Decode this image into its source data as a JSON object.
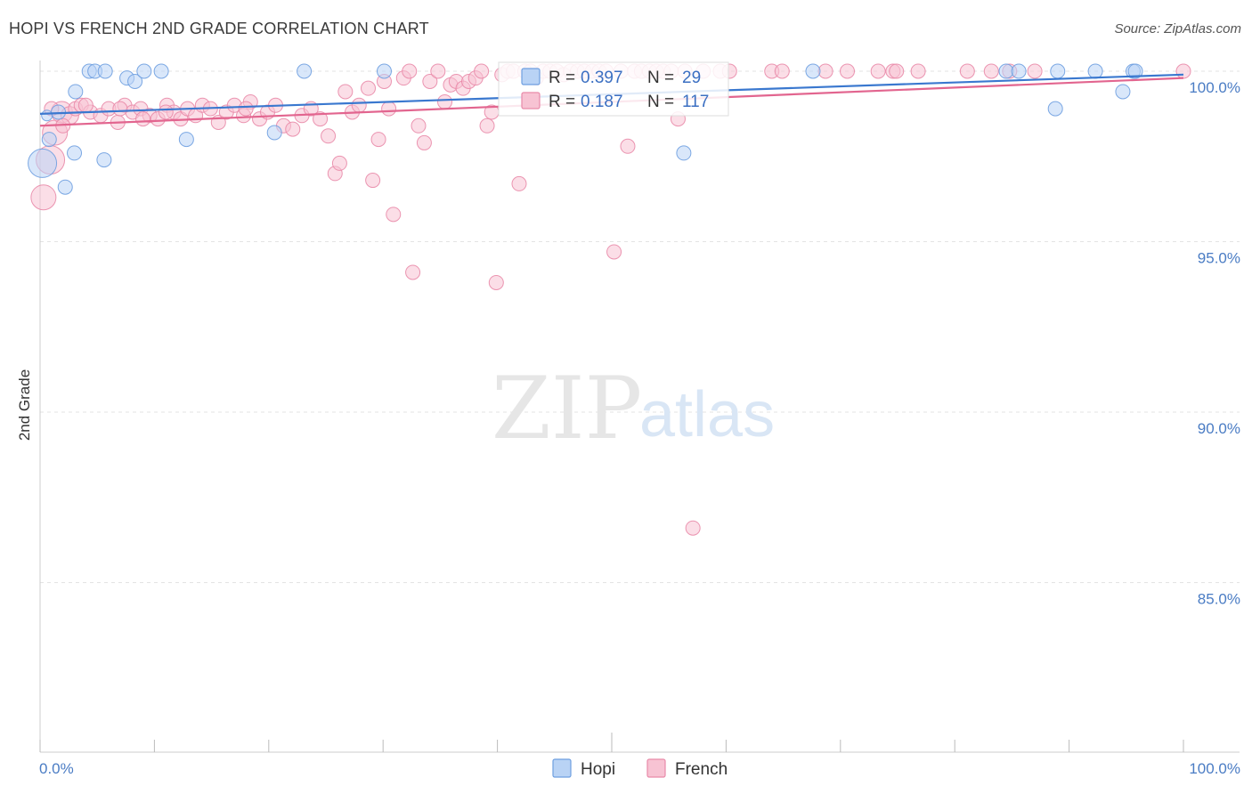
{
  "title": "HOPI VS FRENCH 2ND GRADE CORRELATION CHART",
  "source": "Source: ZipAtlas.com",
  "watermark": {
    "zip": "ZIP",
    "atlas": "atlas"
  },
  "colors": {
    "hopi_fill": "#b9d3f5",
    "hopi_stroke": "#6e9fe0",
    "hopi_line": "#3a78cf",
    "french_fill": "#f7c3d3",
    "french_stroke": "#e98aa9",
    "french_line": "#e2658f",
    "grid": "#e3e3e3",
    "tick_label": "#4a7cc4"
  },
  "legend": {
    "rows": [
      {
        "r_label": "R = ",
        "r_value": "0.397",
        "n_label": "N = ",
        "n_value": "29"
      },
      {
        "r_label": "R = ",
        "r_value": "0.187",
        "n_label": "N = ",
        "n_value": "117"
      }
    ]
  },
  "bottom_legend": [
    "Hopi",
    "French"
  ],
  "chart_data": {
    "type": "scatter",
    "title": "HOPI VS FRENCH 2ND GRADE CORRELATION CHART",
    "xlabel": "",
    "ylabel": "2nd Grade",
    "xlim": [
      0,
      100
    ],
    "ylim": [
      80.5,
      100.7
    ],
    "x_tick_labels": [
      "0.0%",
      "100.0%"
    ],
    "y_ticks": [
      100,
      95,
      90,
      85
    ],
    "y_tick_labels": [
      "100.0%",
      "95.0%",
      "90.0%",
      "85.0%"
    ],
    "grid": true,
    "series": [
      {
        "name": "Hopi",
        "R": 0.397,
        "N": 29,
        "trend": [
          [
            0,
            98.75
          ],
          [
            100,
            99.9
          ]
        ],
        "points": [
          [
            0.2,
            97.3,
            16
          ],
          [
            0.8,
            98.0,
            8
          ],
          [
            1.6,
            98.8,
            8
          ],
          [
            2.2,
            96.6,
            8
          ],
          [
            3.0,
            97.6,
            8
          ],
          [
            3.1,
            99.4,
            8
          ],
          [
            4.3,
            100.0,
            8
          ],
          [
            4.8,
            100.0,
            8
          ],
          [
            5.7,
            100.0,
            8
          ],
          [
            5.6,
            97.4,
            8
          ],
          [
            7.6,
            99.8,
            8
          ],
          [
            8.3,
            99.7,
            8
          ],
          [
            9.1,
            100.0,
            8
          ],
          [
            10.6,
            100.0,
            8
          ],
          [
            12.8,
            98.0,
            8
          ],
          [
            20.5,
            98.2,
            8
          ],
          [
            23.1,
            100.0,
            8
          ],
          [
            30.1,
            100.0,
            8
          ],
          [
            56.3,
            97.6,
            8
          ],
          [
            67.6,
            100.0,
            8
          ],
          [
            84.5,
            100.0,
            8
          ],
          [
            85.6,
            100.0,
            8
          ],
          [
            88.8,
            98.9,
            8
          ],
          [
            89.0,
            100.0,
            8
          ],
          [
            92.3,
            100.0,
            8
          ],
          [
            94.7,
            99.4,
            8
          ],
          [
            95.6,
            100.0,
            8
          ],
          [
            95.8,
            100.0,
            8
          ],
          [
            0.6,
            98.7,
            6
          ]
        ]
      },
      {
        "name": "French",
        "R": 0.187,
        "N": 117,
        "trend": [
          [
            0,
            98.4
          ],
          [
            100,
            99.8
          ]
        ],
        "points": [
          [
            0.3,
            96.3,
            14
          ],
          [
            0.9,
            97.4,
            16
          ],
          [
            1.3,
            98.2,
            14
          ],
          [
            1.9,
            98.8,
            12
          ],
          [
            2.6,
            98.7,
            10
          ],
          [
            3.1,
            98.9,
            8
          ],
          [
            3.6,
            99.0,
            8
          ],
          [
            4.4,
            98.8,
            8
          ],
          [
            5.3,
            98.7,
            8
          ],
          [
            6.0,
            98.9,
            8
          ],
          [
            6.8,
            98.5,
            8
          ],
          [
            7.4,
            99.0,
            8
          ],
          [
            8.1,
            98.8,
            8
          ],
          [
            8.8,
            98.9,
            8
          ],
          [
            9.6,
            98.7,
            8
          ],
          [
            10.3,
            98.6,
            8
          ],
          [
            11.1,
            99.0,
            8
          ],
          [
            11.7,
            98.8,
            8
          ],
          [
            12.3,
            98.6,
            8
          ],
          [
            12.9,
            98.9,
            8
          ],
          [
            13.6,
            98.7,
            8
          ],
          [
            14.2,
            99.0,
            8
          ],
          [
            14.9,
            98.9,
            8
          ],
          [
            15.6,
            98.5,
            8
          ],
          [
            16.3,
            98.8,
            8
          ],
          [
            17.0,
            99.0,
            8
          ],
          [
            17.8,
            98.7,
            8
          ],
          [
            18.4,
            99.1,
            8
          ],
          [
            19.2,
            98.6,
            8
          ],
          [
            19.9,
            98.8,
            8
          ],
          [
            20.6,
            99.0,
            8
          ],
          [
            21.3,
            98.4,
            8
          ],
          [
            22.1,
            98.3,
            8
          ],
          [
            22.9,
            98.7,
            8
          ],
          [
            23.7,
            98.9,
            8
          ],
          [
            24.5,
            98.6,
            8
          ],
          [
            25.2,
            98.1,
            8
          ],
          [
            25.8,
            97.0,
            8
          ],
          [
            26.2,
            97.3,
            8
          ],
          [
            26.7,
            99.4,
            8
          ],
          [
            27.3,
            98.8,
            8
          ],
          [
            27.9,
            99.0,
            8
          ],
          [
            28.7,
            99.5,
            8
          ],
          [
            29.1,
            96.8,
            8
          ],
          [
            29.6,
            98.0,
            8
          ],
          [
            30.1,
            99.7,
            8
          ],
          [
            30.5,
            98.9,
            8
          ],
          [
            30.9,
            95.8,
            8
          ],
          [
            31.8,
            99.8,
            8
          ],
          [
            32.3,
            100.0,
            8
          ],
          [
            32.6,
            94.1,
            8
          ],
          [
            33.1,
            98.4,
            8
          ],
          [
            33.6,
            97.9,
            8
          ],
          [
            34.1,
            99.7,
            8
          ],
          [
            34.8,
            100.0,
            8
          ],
          [
            35.4,
            99.1,
            8
          ],
          [
            35.9,
            99.6,
            8
          ],
          [
            36.4,
            99.7,
            8
          ],
          [
            37.0,
            99.5,
            8
          ],
          [
            37.5,
            99.7,
            8
          ],
          [
            38.1,
            99.8,
            8
          ],
          [
            38.6,
            100.0,
            8
          ],
          [
            39.1,
            98.4,
            8
          ],
          [
            39.5,
            98.8,
            8
          ],
          [
            39.9,
            93.8,
            8
          ],
          [
            40.4,
            99.9,
            8
          ],
          [
            40.9,
            100.0,
            8
          ],
          [
            41.4,
            100.0,
            8
          ],
          [
            41.9,
            96.7,
            8
          ],
          [
            42.4,
            100.0,
            8
          ],
          [
            42.9,
            100.0,
            8
          ],
          [
            43.4,
            99.8,
            8
          ],
          [
            44.0,
            100.0,
            8
          ],
          [
            44.6,
            100.0,
            8
          ],
          [
            45.2,
            100.0,
            8
          ],
          [
            45.8,
            99.9,
            8
          ],
          [
            46.4,
            100.0,
            8
          ],
          [
            47.0,
            100.0,
            8
          ],
          [
            47.6,
            100.0,
            8
          ],
          [
            48.3,
            100.0,
            8
          ],
          [
            48.9,
            100.0,
            8
          ],
          [
            49.5,
            100.0,
            8
          ],
          [
            50.2,
            94.7,
            8
          ],
          [
            50.8,
            100.0,
            8
          ],
          [
            51.4,
            97.8,
            8
          ],
          [
            52.0,
            100.0,
            8
          ],
          [
            52.6,
            100.0,
            8
          ],
          [
            53.3,
            100.0,
            8
          ],
          [
            53.9,
            100.0,
            8
          ],
          [
            54.5,
            100.0,
            8
          ],
          [
            55.2,
            100.0,
            8
          ],
          [
            55.8,
            98.6,
            8
          ],
          [
            56.4,
            100.0,
            8
          ],
          [
            57.1,
            86.6,
            8
          ],
          [
            58.0,
            100.0,
            8
          ],
          [
            59.5,
            100.0,
            8
          ],
          [
            60.3,
            100.0,
            8
          ],
          [
            64.0,
            100.0,
            8
          ],
          [
            64.9,
            100.0,
            8
          ],
          [
            68.7,
            100.0,
            8
          ],
          [
            70.6,
            100.0,
            8
          ],
          [
            73.3,
            100.0,
            8
          ],
          [
            74.6,
            100.0,
            8
          ],
          [
            74.9,
            100.0,
            8
          ],
          [
            76.8,
            100.0,
            8
          ],
          [
            81.1,
            100.0,
            8
          ],
          [
            83.2,
            100.0,
            8
          ],
          [
            84.8,
            100.0,
            8
          ],
          [
            87.0,
            100.0,
            8
          ],
          [
            100.0,
            100.0,
            8
          ],
          [
            1.0,
            98.9,
            8
          ],
          [
            2.0,
            98.4,
            8
          ],
          [
            4.0,
            99.0,
            8
          ],
          [
            7.0,
            98.9,
            8
          ],
          [
            9.0,
            98.6,
            8
          ],
          [
            11.0,
            98.8,
            8
          ],
          [
            18.0,
            98.9,
            8
          ]
        ]
      }
    ]
  }
}
